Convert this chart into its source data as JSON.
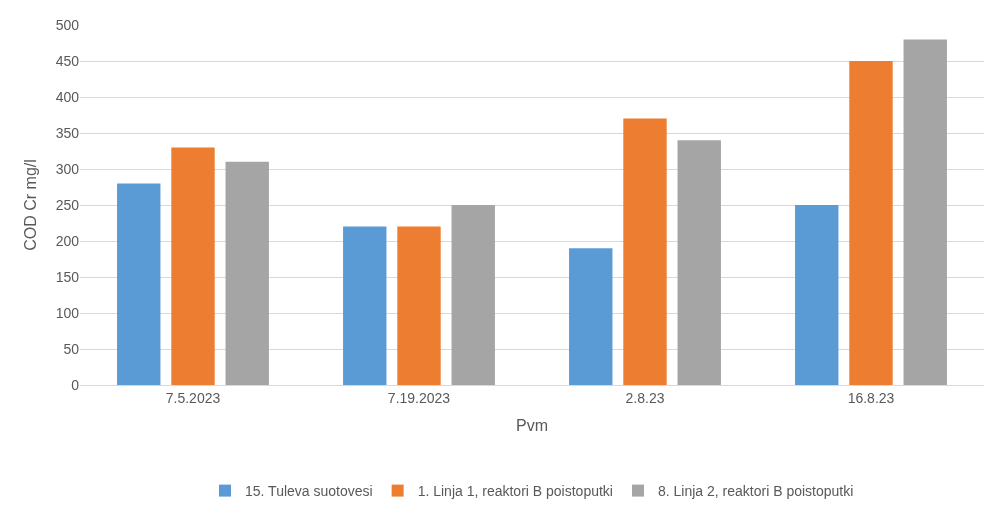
{
  "chart_data": {
    "type": "bar",
    "xlabel": "Pvm",
    "ylabel": "COD Cr mg/l",
    "categories": [
      "7.5.2023",
      "7.19.2023",
      "2.8.23",
      "16.8.23"
    ],
    "series": [
      {
        "name": "15. Tuleva suotovesi",
        "color": "#5b9bd5",
        "values": [
          280,
          220,
          190,
          250
        ]
      },
      {
        "name": "1. Linja 1, reaktori B poistoputki",
        "color": "#ed7d31",
        "values": [
          330,
          220,
          370,
          450
        ]
      },
      {
        "name": "8. Linja 2, reaktori B poistoputki",
        "color": "#a5a5a5",
        "values": [
          310,
          250,
          340,
          480
        ]
      }
    ],
    "ylim": [
      0,
      500
    ],
    "yticks": [
      0,
      50,
      100,
      150,
      200,
      250,
      300,
      350,
      400,
      450,
      500
    ],
    "grid": "y",
    "legend": "bottom"
  }
}
